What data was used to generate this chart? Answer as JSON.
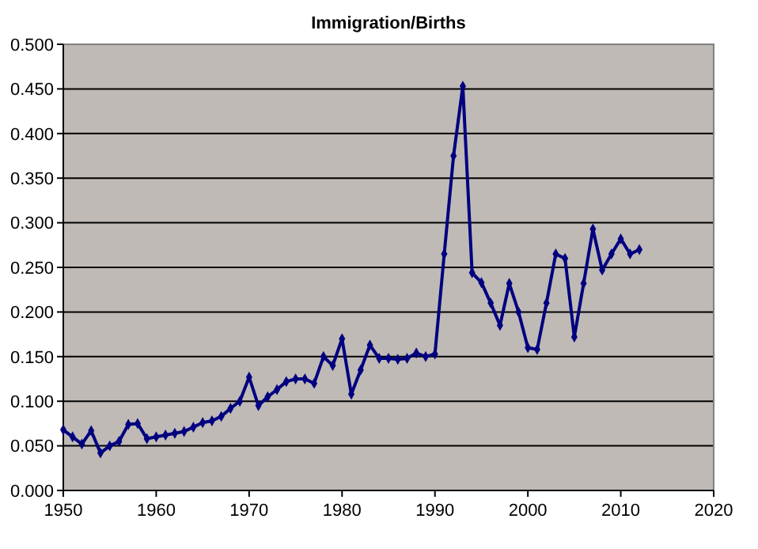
{
  "chart_data": {
    "type": "line",
    "title": "Immigration/Births",
    "x": [
      1950,
      1951,
      1952,
      1953,
      1954,
      1955,
      1956,
      1957,
      1958,
      1959,
      1960,
      1961,
      1962,
      1963,
      1964,
      1965,
      1966,
      1967,
      1968,
      1969,
      1970,
      1971,
      1972,
      1973,
      1974,
      1975,
      1976,
      1977,
      1978,
      1979,
      1980,
      1981,
      1982,
      1983,
      1984,
      1985,
      1986,
      1987,
      1988,
      1989,
      1990,
      1991,
      1992,
      1993,
      1994,
      1995,
      1996,
      1997,
      1998,
      1999,
      2000,
      2001,
      2002,
      2003,
      2004,
      2005,
      2006,
      2007,
      2008,
      2009,
      2010,
      2011,
      2012
    ],
    "series": [
      {
        "color": "#000080",
        "values": [
          0.068,
          0.06,
          0.052,
          0.067,
          0.042,
          0.05,
          0.055,
          0.074,
          0.075,
          0.058,
          0.06,
          0.062,
          0.064,
          0.066,
          0.071,
          0.076,
          0.078,
          0.083,
          0.092,
          0.1,
          0.127,
          0.095,
          0.105,
          0.113,
          0.122,
          0.125,
          0.125,
          0.12,
          0.15,
          0.14,
          0.17,
          0.108,
          0.135,
          0.163,
          0.148,
          0.148,
          0.147,
          0.148,
          0.154,
          0.15,
          0.153,
          0.265,
          0.375,
          0.453,
          0.244,
          0.233,
          0.21,
          0.185,
          0.232,
          0.2,
          0.16,
          0.158,
          0.21,
          0.265,
          0.26,
          0.172,
          0.232,
          0.293,
          0.247,
          0.265,
          0.282,
          0.265,
          0.27
        ]
      }
    ],
    "xlim": [
      1950,
      2020
    ],
    "xticks": [
      1950,
      1960,
      1970,
      1980,
      1990,
      2000,
      2010,
      2020
    ],
    "ylim": [
      0,
      0.5
    ],
    "yticks": [
      {
        "value": 0,
        "label": "0.000"
      },
      {
        "value": 0.05,
        "label": "0.050"
      },
      {
        "value": 0.1,
        "label": "0.100"
      },
      {
        "value": 0.15,
        "label": "0.150"
      },
      {
        "value": 0.2,
        "label": "0.200"
      },
      {
        "value": 0.25,
        "label": "0.250"
      },
      {
        "value": 0.3,
        "label": "0.300"
      },
      {
        "value": 0.35,
        "label": "0.350"
      },
      {
        "value": 0.4,
        "label": "0.400"
      },
      {
        "value": 0.45,
        "label": "0.450"
      },
      {
        "value": 0.5,
        "label": "0.500"
      }
    ],
    "grid": "y",
    "marker": "diamond",
    "line_style": "solid"
  }
}
